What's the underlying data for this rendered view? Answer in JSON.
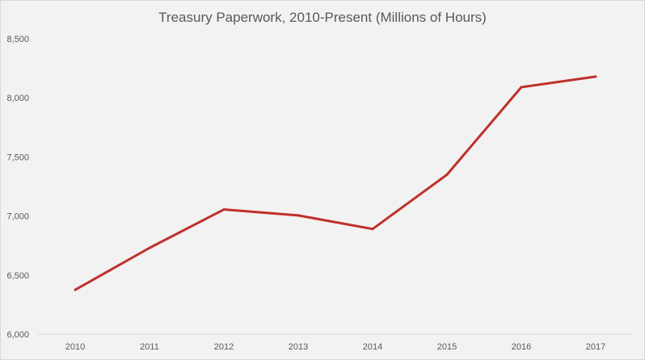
{
  "chart_data": {
    "type": "line",
    "title": "Treasury Paperwork, 2010-Present (Millions of Hours)",
    "xlabel": "",
    "ylabel": "",
    "categories": [
      "2010",
      "2011",
      "2012",
      "2013",
      "2014",
      "2015",
      "2016",
      "2017"
    ],
    "series": [
      {
        "name": "Treasury Paperwork",
        "color": "#c0302b",
        "values": [
          6375,
          6730,
          7055,
          7005,
          6890,
          7350,
          8090,
          8180
        ]
      }
    ],
    "ylim": [
      6000,
      8500
    ],
    "yticks": [
      6000,
      6500,
      7000,
      7500,
      8000,
      8500
    ],
    "ytick_labels": [
      "6,000",
      "6,500",
      "7,000",
      "7,500",
      "8,000",
      "8,500"
    ],
    "grid": false,
    "legend": "none"
  }
}
